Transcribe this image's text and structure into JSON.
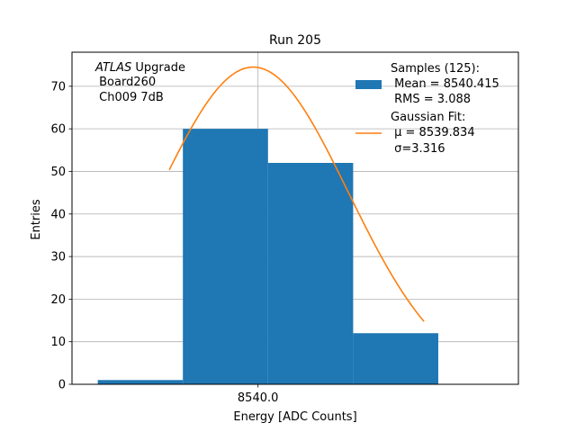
{
  "chart_data": {
    "type": "bar",
    "title": "Run 205",
    "xlabel": "Energy [ADC Counts]",
    "ylabel": "Entries",
    "xlim": [
      8533.5,
      8549.1
    ],
    "ylim": [
      0,
      78
    ],
    "yticks": [
      0,
      10,
      20,
      30,
      40,
      50,
      60,
      70
    ],
    "xticks": [
      {
        "value": 8540.0,
        "label": "8540.0"
      }
    ],
    "grid": true,
    "legend_position": "top-right",
    "histogram": {
      "series_name": "Samples (125):",
      "series_stats": [
        " Mean = 8540.415",
        " RMS = 3.088"
      ],
      "color": "#1f77b4",
      "bins": [
        {
          "x0": 8534.4,
          "x1": 8537.375,
          "count": 1
        },
        {
          "x0": 8537.375,
          "x1": 8540.35,
          "count": 60
        },
        {
          "x0": 8540.35,
          "x1": 8543.325,
          "count": 52
        },
        {
          "x0": 8543.325,
          "x1": 8546.3,
          "count": 12
        },
        {
          "x0": 8546.3,
          "x1": 8549.275,
          "count": 0
        }
      ]
    },
    "fit": {
      "series_name": "Gaussian Fit:",
      "series_params": [
        " μ = 8539.834",
        " σ=3.316"
      ],
      "color": "#ff7f0e",
      "mu": 8539.834,
      "sigma": 3.316,
      "amplitude": 74.5,
      "x_range": [
        8536.9,
        8545.8
      ]
    },
    "annotation": {
      "italic": "ATLAS",
      "normal": " Upgrade",
      "lines": [
        " Board260",
        " Ch009 7dB"
      ]
    }
  }
}
